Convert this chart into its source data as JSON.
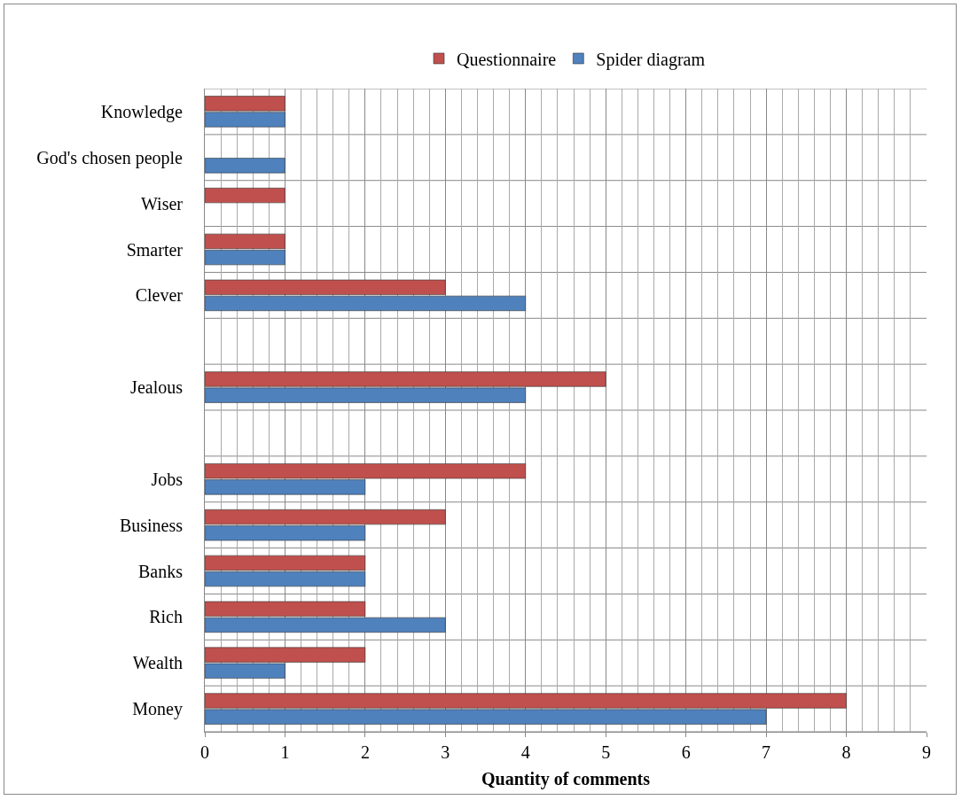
{
  "chart_data": {
    "type": "bar",
    "orientation": "horizontal",
    "xlabel": "Quantity of comments",
    "categories": [
      "Knowledge",
      "God's chosen people",
      "Wiser",
      "Smarter",
      "Clever",
      null,
      "Jealous",
      null,
      "Jobs",
      "Business",
      "Banks",
      "Rich",
      "Wealth",
      "Money"
    ],
    "series": [
      {
        "name": "Questionnaire",
        "color": "#c0504d",
        "values": [
          1,
          null,
          1,
          1,
          3,
          null,
          5,
          null,
          4,
          3,
          2,
          2,
          2,
          8
        ]
      },
      {
        "name": "Spider diagram",
        "color": "#4f81bd",
        "values": [
          1,
          1,
          null,
          1,
          4,
          null,
          4,
          null,
          2,
          2,
          2,
          3,
          1,
          7
        ]
      }
    ],
    "xlim": [
      0,
      9
    ],
    "xticks": [
      0,
      1,
      2,
      3,
      4,
      5,
      6,
      7,
      8,
      9
    ],
    "grid": true,
    "legend": "top"
  }
}
